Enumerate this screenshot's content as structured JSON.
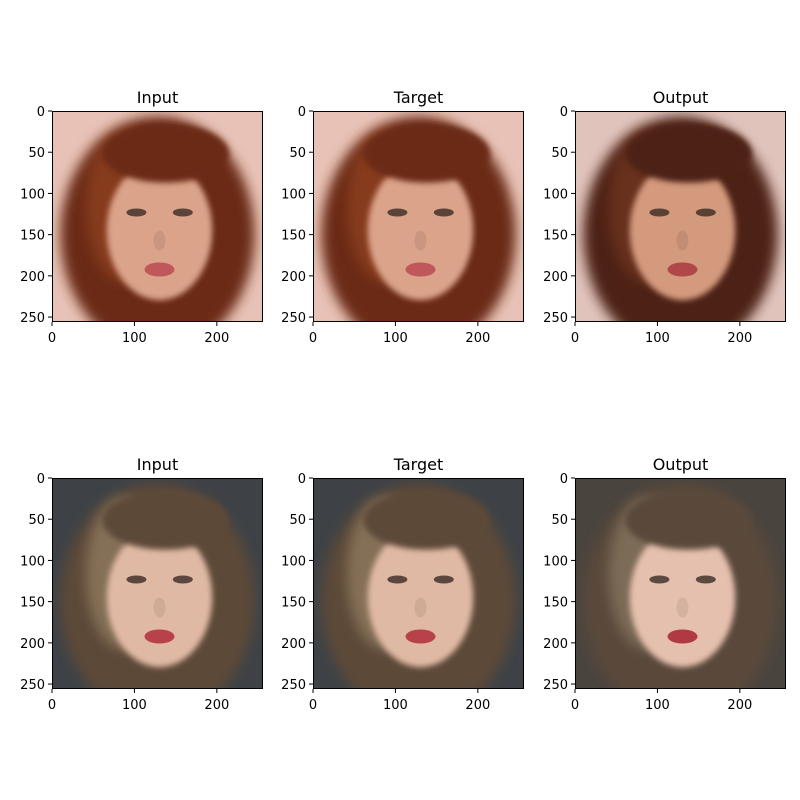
{
  "chart_data": {
    "type": "image-grid",
    "x_ticks": [
      0,
      100,
      200
    ],
    "y_ticks": [
      0,
      50,
      100,
      150,
      200,
      250
    ],
    "xlim": [
      0,
      256
    ],
    "ylim": [
      256,
      0
    ],
    "rows": [
      {
        "panels": [
          {
            "title": "Input",
            "hair": "#6b2a14",
            "hair_hi": "#9a4622",
            "bg": "#e8c2b6",
            "skin": "#dba38a",
            "lips": "#c0575a"
          },
          {
            "title": "Target",
            "hair": "#6b2a14",
            "hair_hi": "#9a4622",
            "bg": "#e8c2b6",
            "skin": "#dba38a",
            "lips": "#c0575a"
          },
          {
            "title": "Output",
            "hair": "#4e2216",
            "hair_hi": "#7a3a22",
            "bg": "#e0c4bc",
            "skin": "#d49a7e",
            "lips": "#b0484a"
          }
        ]
      },
      {
        "panels": [
          {
            "title": "Input",
            "hair": "#5d4a38",
            "hair_hi": "#a08a6c",
            "bg": "#3e4246",
            "skin": "#e0b9a4",
            "lips": "#b8424a"
          },
          {
            "title": "Target",
            "hair": "#5d4a38",
            "hair_hi": "#a08a6c",
            "bg": "#3e4246",
            "skin": "#e0b9a4",
            "lips": "#b8424a"
          },
          {
            "title": "Output",
            "hair": "#5a4a3a",
            "hair_hi": "#94826a",
            "bg": "#4a443e",
            "skin": "#e6c0ae",
            "lips": "#b03a44"
          }
        ]
      }
    ]
  }
}
